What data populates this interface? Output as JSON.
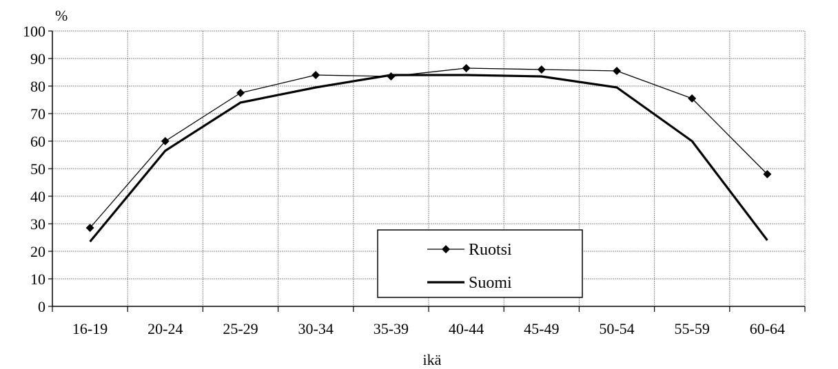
{
  "chart_data": {
    "type": "line",
    "title": "",
    "xlabel": "ikä",
    "ylabel": "%",
    "ylim": [
      0,
      100
    ],
    "yticks": [
      0,
      10,
      20,
      30,
      40,
      50,
      60,
      70,
      80,
      90,
      100
    ],
    "categories": [
      "16-19",
      "20-24",
      "25-29",
      "30-34",
      "35-39",
      "40-44",
      "45-49",
      "50-54",
      "55-59",
      "60-64"
    ],
    "grid": true,
    "legend_position": "bottom-center",
    "series": [
      {
        "name": "Ruotsi",
        "values": [
          28.5,
          60,
          77.5,
          84,
          83.5,
          86.5,
          86,
          85.5,
          75.5,
          48
        ],
        "marker": "diamond",
        "color": "#000000",
        "line_weight": "thin"
      },
      {
        "name": "Suomi",
        "values": [
          23.5,
          56.5,
          74,
          79.5,
          84,
          84,
          83.5,
          79.5,
          60,
          24
        ],
        "marker": "none",
        "color": "#000000",
        "line_weight": "thick"
      }
    ]
  }
}
